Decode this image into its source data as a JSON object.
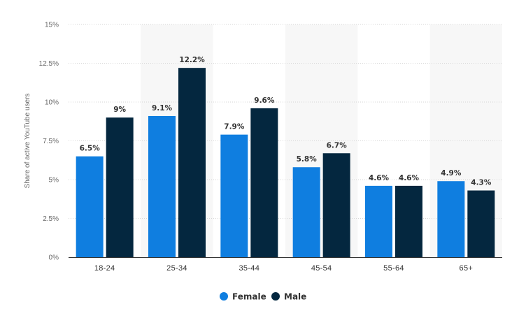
{
  "chart_data": {
    "type": "bar",
    "ylabel": "Share of active YouTube users",
    "xlabel": "",
    "ylim": [
      0,
      15
    ],
    "yticks": [
      0,
      2.5,
      5,
      7.5,
      10,
      12.5,
      15
    ],
    "ytick_labels": [
      "0%",
      "2.5%",
      "5%",
      "7.5%",
      "10%",
      "12.5%",
      "15%"
    ],
    "categories": [
      "18-24",
      "25-34",
      "35-44",
      "45-54",
      "55-64",
      "65+"
    ],
    "series": [
      {
        "name": "Female",
        "color": "#0f7ee0",
        "values": [
          6.5,
          9.1,
          7.9,
          5.8,
          4.6,
          4.9
        ],
        "labels": [
          "6.5%",
          "9.1%",
          "7.9%",
          "5.8%",
          "4.6%",
          "4.9%"
        ]
      },
      {
        "name": "Male",
        "color": "#04273f",
        "values": [
          9,
          12.2,
          9.6,
          6.7,
          4.6,
          4.3
        ],
        "labels": [
          "9%",
          "12.2%",
          "9.6%",
          "6.7%",
          "4.6%",
          "4.3%"
        ]
      }
    ],
    "grid": true,
    "legend_position": "bottom-center"
  }
}
